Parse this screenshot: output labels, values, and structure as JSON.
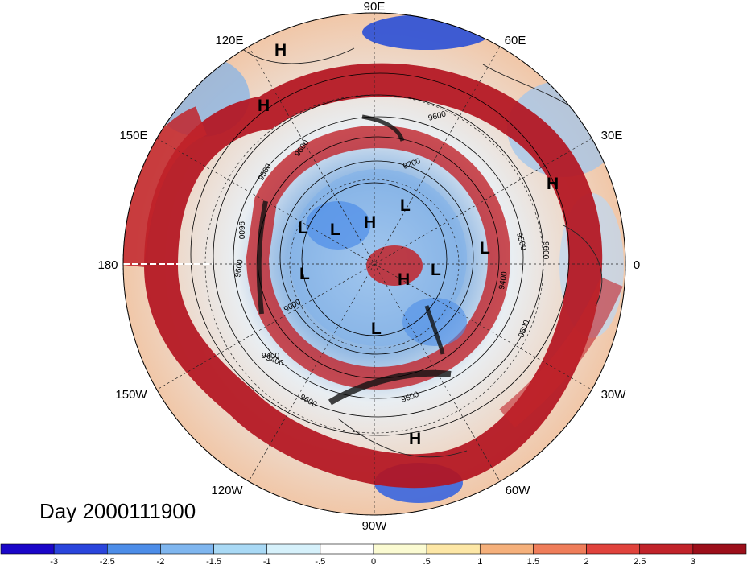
{
  "title": "Day 2000111900",
  "longitude_labels": [
    "90E",
    "60E",
    "30E",
    "0",
    "30W",
    "60W",
    "90W",
    "120W",
    "150W",
    "180",
    "150E",
    "120E"
  ],
  "pressure_systems": [
    {
      "type": "H",
      "lon": "~95E"
    },
    {
      "type": "H",
      "lon": "~105E"
    },
    {
      "type": "H",
      "lon": "~15E"
    },
    {
      "type": "H",
      "lon": "~80W"
    },
    {
      "type": "H",
      "lon": "~120E"
    },
    {
      "type": "H",
      "lon": "~85W"
    },
    {
      "type": "L",
      "lon": "~170E"
    },
    {
      "type": "L",
      "lon": "~150E"
    },
    {
      "type": "L",
      "lon": "~160W"
    },
    {
      "type": "L",
      "lon": "~60E"
    },
    {
      "type": "L",
      "lon": "~5E"
    },
    {
      "type": "L",
      "lon": "~30W"
    },
    {
      "type": "L",
      "lon": "~95W"
    }
  ],
  "contour_labels": [
    "9600",
    "9200",
    "9500",
    "9600",
    "9600",
    "9600",
    "9400",
    "9600",
    "9400",
    "9000",
    "9600",
    "9500",
    "9400",
    "9600",
    "9500"
  ],
  "colorbar": {
    "labels": [
      "-3",
      "-2.5",
      "-2",
      "-1.5",
      "-1",
      "-.5",
      "0",
      ".5",
      "1",
      "1.5",
      "2",
      "2.5",
      "3"
    ],
    "colors": [
      "#1a06c8",
      "#2a55e6",
      "#4d8de8",
      "#7fb6ef",
      "#a9d9f5",
      "#d6f1fb",
      "#fbfbd2",
      "#fde7a6",
      "#f5b07b",
      "#ef7d5a",
      "#e0433c",
      "#c1232a",
      "#9c0f1a"
    ]
  }
}
